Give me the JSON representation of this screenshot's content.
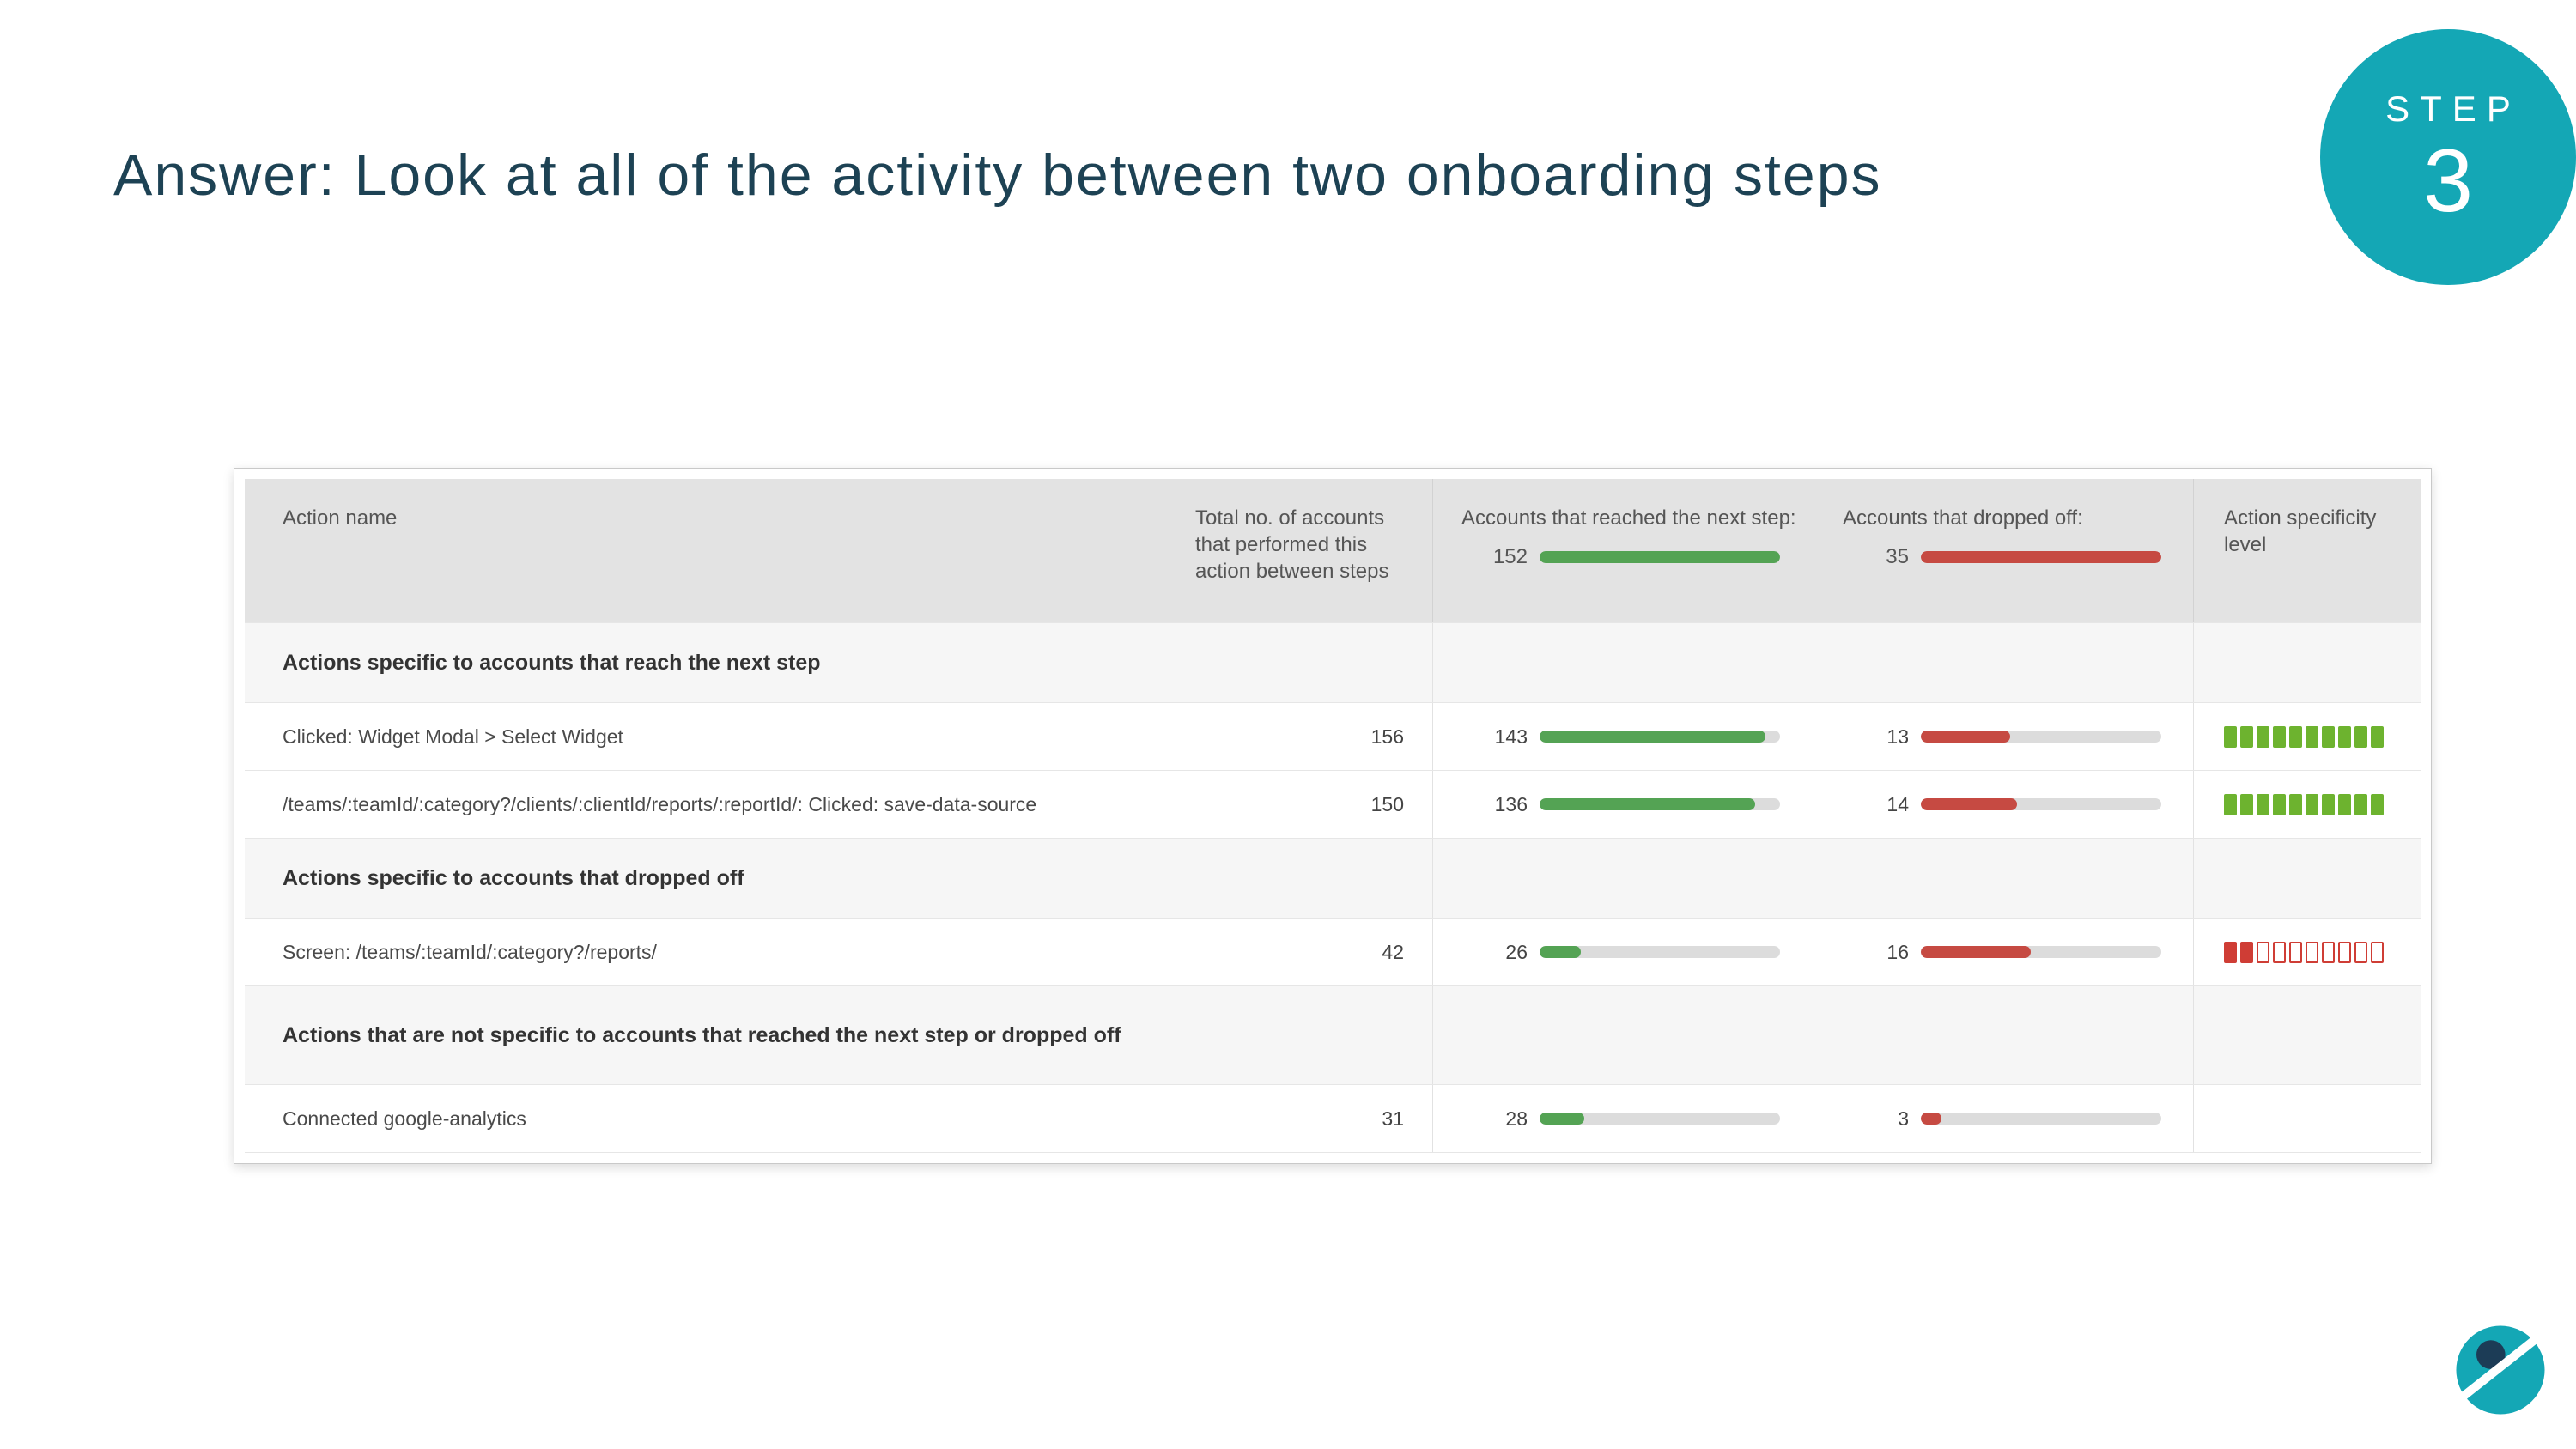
{
  "slide": {
    "title": "Answer: Look at all of the activity between two onboarding steps",
    "step_badge": {
      "label": "STEP",
      "number": "3"
    }
  },
  "colors": {
    "title": "#1d4254",
    "accent_teal": "#14a7b5",
    "bar_green": "#54a354",
    "bar_red": "#c64a42",
    "bar_track": "#dcdcdc",
    "spec_green": "#6db32f",
    "spec_red": "#cf3d35"
  },
  "table": {
    "max_reached": 152,
    "max_dropped": 35,
    "columns": {
      "action_name": "Action name",
      "total": "Total no. of accounts that performed this action between steps",
      "reached_label": "Accounts that reached the next step:",
      "reached_total": "152",
      "dropped_label": "Accounts that dropped off:",
      "dropped_total": "35",
      "specificity": "Action specificity level"
    },
    "rows": [
      {
        "type": "section",
        "label": "Actions specific to accounts that reach the next step"
      },
      {
        "type": "data",
        "name": "Clicked: Widget Modal > Select Widget",
        "total": "156",
        "reached": "143",
        "dropped": "13",
        "spec": {
          "color": "green",
          "filled": 10,
          "total": 10
        }
      },
      {
        "type": "data",
        "name": "/teams/:teamId/:category?/clients/:clientId/reports/:reportId/: Clicked: save-data-source",
        "total": "150",
        "reached": "136",
        "dropped": "14",
        "spec": {
          "color": "green",
          "filled": 10,
          "total": 10
        }
      },
      {
        "type": "section",
        "label": "Actions specific to accounts that dropped off"
      },
      {
        "type": "data",
        "name": "Screen: /teams/:teamId/:category?/reports/",
        "total": "42",
        "reached": "26",
        "dropped": "16",
        "spec": {
          "color": "red",
          "filled": 2,
          "total": 10
        }
      },
      {
        "type": "section",
        "label": "Actions that are not specific to accounts that reached the next step or dropped off"
      },
      {
        "type": "data",
        "name": "Connected google-analytics",
        "total": "31",
        "reached": "28",
        "dropped": "3",
        "spec": null
      }
    ]
  }
}
